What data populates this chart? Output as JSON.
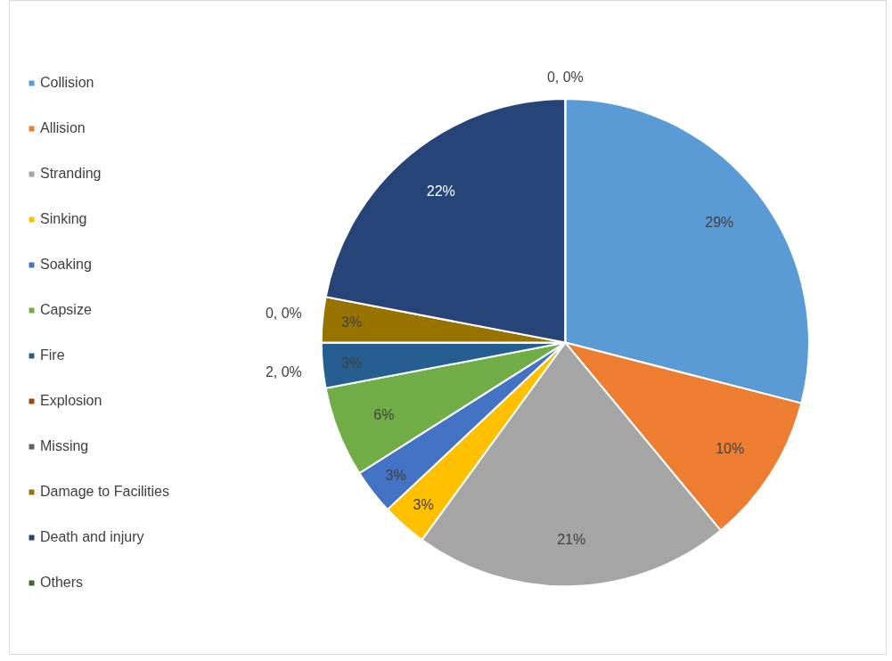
{
  "chart_data": {
    "type": "pie",
    "categories": [
      "Collision",
      "Allision",
      "Stranding",
      "Sinking",
      "Soaking",
      "Capsize",
      "Fire",
      "Explosion",
      "Missing",
      "Damage to Facilities",
      "Death and injury",
      "Others"
    ],
    "values": [
      29,
      10,
      21,
      3,
      3,
      6,
      3,
      0,
      0,
      3,
      22,
      0
    ],
    "value_labels": [
      "29%",
      "10%",
      "21%",
      "3%",
      "3%",
      "6%",
      "3%",
      "2, 0%",
      "0, 0%",
      "3%",
      "22%",
      "0, 0%"
    ],
    "colors": [
      "#5b9bd5",
      "#ed7d31",
      "#a5a5a5",
      "#ffc000",
      "#4472c4",
      "#70ad47",
      "#255e91",
      "#9e480e",
      "#636363",
      "#997300",
      "#264478",
      "#43682b"
    ],
    "legend": "left"
  }
}
